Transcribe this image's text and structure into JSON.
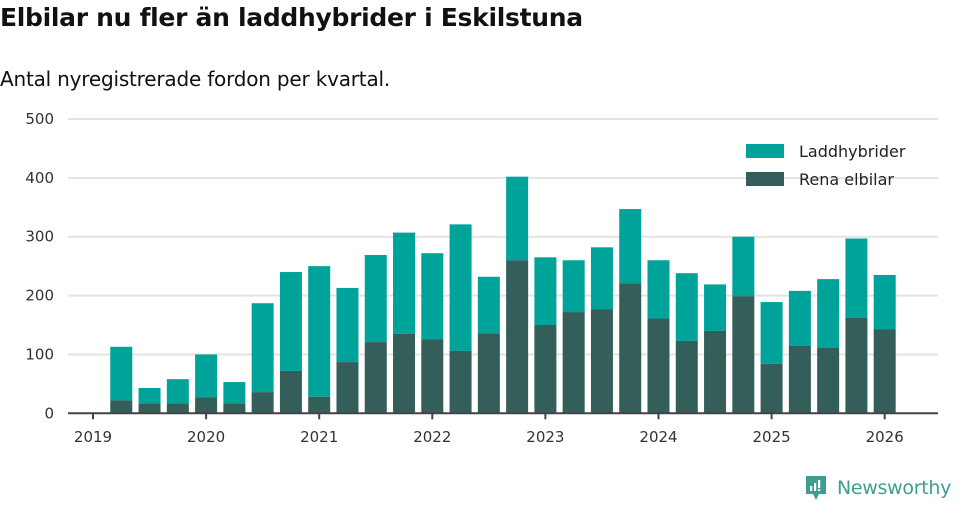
{
  "header": {
    "title": "Elbilar nu fler än laddhybrider i Eskilstuna",
    "subtitle": "Antal nyregistrerade fordon per kvartal."
  },
  "legend": [
    {
      "label": "Laddhybrider",
      "color": "#00a39a"
    },
    {
      "label": "Rena elbilar",
      "color": "#345e5a"
    }
  ],
  "branding": {
    "logo_text": "Newsworthy",
    "color": "#3f9e8f"
  },
  "chart_data": {
    "type": "bar",
    "stacked": true,
    "title": "Elbilar nu fler än laddhybrider i Eskilstuna",
    "subtitle": "Antal nyregistrerade fordon per kvartal.",
    "xlabel": "",
    "ylabel": "",
    "ylim": [
      0,
      500
    ],
    "yticks": [
      0,
      100,
      200,
      300,
      400,
      500
    ],
    "xticks": [
      "2019",
      "2020",
      "2021",
      "2022",
      "2023",
      "2024",
      "2025",
      "2026"
    ],
    "grid": true,
    "legend_position": "top-right",
    "categories": [
      "2019 Q2",
      "2019 Q3",
      "2019 Q4",
      "2020 Q1",
      "2020 Q2",
      "2020 Q3",
      "2020 Q4",
      "2021 Q1",
      "2021 Q2",
      "2021 Q3",
      "2021 Q4",
      "2022 Q1",
      "2022 Q2",
      "2022 Q3",
      "2022 Q4",
      "2023 Q1",
      "2023 Q2",
      "2023 Q3",
      "2023 Q4",
      "2024 Q1",
      "2024 Q2",
      "2024 Q3",
      "2024 Q4",
      "2025 Q1",
      "2025 Q2",
      "2025 Q3",
      "2025 Q4",
      "2026 Q1"
    ],
    "series": [
      {
        "name": "Rena elbilar",
        "color": "#345e5a",
        "values": [
          22,
          17,
          17,
          27,
          17,
          36,
          72,
          28,
          87,
          121,
          135,
          126,
          106,
          136,
          260,
          150,
          172,
          177,
          221,
          161,
          123,
          140,
          199,
          84,
          115,
          111,
          162,
          143
        ]
      },
      {
        "name": "Laddhybrider",
        "color": "#00a39a",
        "values": [
          91,
          26,
          41,
          73,
          36,
          151,
          168,
          222,
          126,
          148,
          172,
          146,
          215,
          96,
          142,
          115,
          88,
          105,
          126,
          99,
          115,
          79,
          101,
          105,
          93,
          117,
          135,
          92
        ]
      }
    ],
    "totals": [
      113,
      43,
      58,
      100,
      53,
      187,
      240,
      250,
      213,
      269,
      307,
      272,
      321,
      232,
      402,
      265,
      260,
      282,
      347,
      260,
      238,
      219,
      300,
      189,
      208,
      228,
      297,
      235
    ]
  }
}
